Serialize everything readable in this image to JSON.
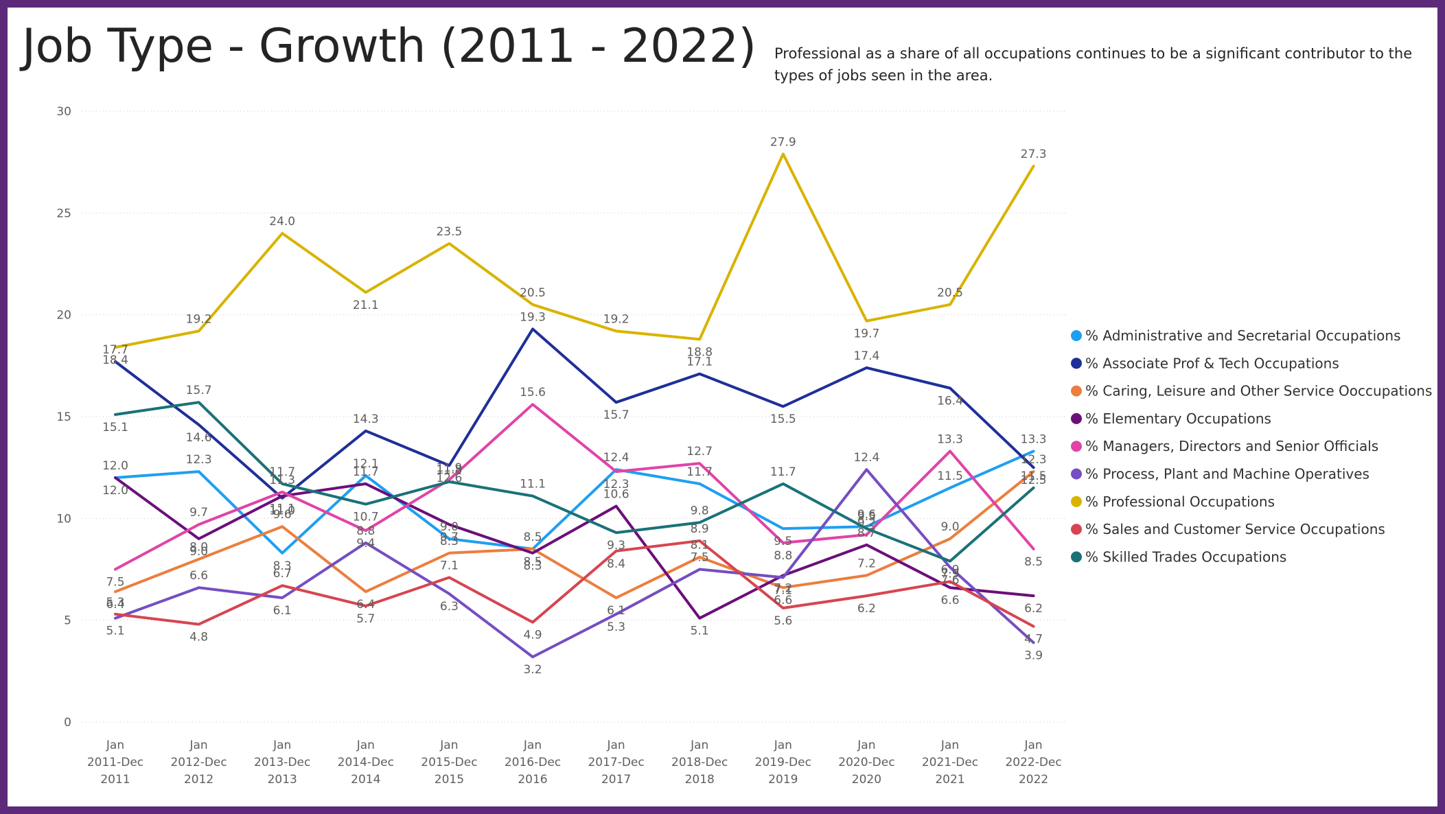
{
  "page": {
    "title": "Job Type - Growth (2011 - 2022)",
    "subtitle": "Professional as a share of all occupations continues to be a significant contributor to the types of jobs seen in the area.",
    "frame_color": "#5c2a78"
  },
  "chart_data": {
    "type": "line",
    "title": "Job Type - Growth (2011 - 2022)",
    "xlabel": "",
    "ylabel": "",
    "ylim": [
      0,
      30
    ],
    "yticks": [
      0,
      5,
      10,
      15,
      20,
      25,
      30
    ],
    "grid": true,
    "legend_position": "right",
    "categories": [
      [
        "Jan",
        "2011-Dec",
        "2011"
      ],
      [
        "Jan",
        "2012-Dec",
        "2012"
      ],
      [
        "Jan",
        "2013-Dec",
        "2013"
      ],
      [
        "Jan",
        "2014-Dec",
        "2014"
      ],
      [
        "Jan",
        "2015-Dec",
        "2015"
      ],
      [
        "Jan",
        "2016-Dec",
        "2016"
      ],
      [
        "Jan",
        "2017-Dec",
        "2017"
      ],
      [
        "Jan",
        "2018-Dec",
        "2018"
      ],
      [
        "Jan",
        "2019-Dec",
        "2019"
      ],
      [
        "Jan",
        "2020-Dec",
        "2020"
      ],
      [
        "Jan",
        "2021-Dec",
        "2021"
      ],
      [
        "Jan",
        "2022-Dec",
        "2022"
      ]
    ],
    "series": [
      {
        "name": "% Administrative and Secretarial Occupations",
        "color": "#1e9ff2",
        "values": [
          12.0,
          12.3,
          8.3,
          12.1,
          9.0,
          8.5,
          12.4,
          11.7,
          9.5,
          9.6,
          11.5,
          13.3
        ]
      },
      {
        "name": "% Associate Prof & Tech Occupations",
        "color": "#1f2f98",
        "values": [
          17.7,
          14.6,
          11.0,
          14.3,
          12.6,
          19.3,
          15.7,
          17.1,
          15.5,
          17.4,
          16.4,
          12.5
        ]
      },
      {
        "name": "% Caring, Leisure and Other Service Ooccupations",
        "color": "#ec7e3e",
        "values": [
          6.4,
          8.0,
          9.6,
          6.4,
          8.3,
          8.5,
          6.1,
          8.1,
          6.6,
          7.2,
          9.0,
          12.3
        ]
      },
      {
        "name": "% Elementary Occupations",
        "color": "#6b0f7a",
        "values": [
          12.0,
          9.0,
          11.1,
          11.7,
          9.7,
          8.3,
          10.6,
          5.1,
          7.2,
          8.7,
          6.6,
          6.2
        ]
      },
      {
        "name": "% Managers, Directors and Senior Officials",
        "color": "#e044a7",
        "values": [
          7.5,
          9.7,
          11.3,
          9.4,
          11.9,
          15.6,
          12.3,
          12.7,
          8.8,
          9.2,
          13.3,
          8.5
        ]
      },
      {
        "name": "% Process, Plant and Machine Operatives",
        "color": "#744ec2",
        "values": [
          5.1,
          6.6,
          6.1,
          8.8,
          6.3,
          3.2,
          5.3,
          7.5,
          7.1,
          12.4,
          7.6,
          3.9
        ]
      },
      {
        "name": "% Professional Occupations",
        "color": "#d9b300",
        "values": [
          18.4,
          19.2,
          24.0,
          21.1,
          23.5,
          20.5,
          19.2,
          18.8,
          27.9,
          19.7,
          20.5,
          27.3
        ]
      },
      {
        "name": "% Sales and Customer Service Occupations",
        "color": "#d64550",
        "values": [
          5.3,
          4.8,
          6.7,
          5.7,
          7.1,
          4.9,
          8.4,
          8.9,
          5.6,
          6.2,
          6.9,
          4.7
        ]
      },
      {
        "name": "% Skilled Trades Occupations",
        "color": "#197278",
        "values": [
          15.1,
          15.7,
          11.7,
          10.7,
          11.8,
          11.1,
          9.3,
          9.8,
          11.7,
          9.5,
          7.9,
          11.5
        ]
      }
    ]
  }
}
